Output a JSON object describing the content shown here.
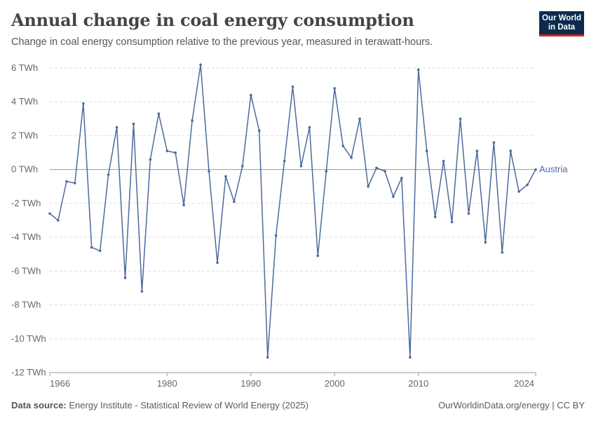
{
  "header": {
    "title": "Annual change in coal energy consumption",
    "subtitle": "Change in coal energy consumption relative to the previous year, measured in terawatt-hours."
  },
  "logo": {
    "line1": "Our World",
    "line2": "in Data"
  },
  "footer": {
    "source_label": "Data source:",
    "source_text": "Energy Institute - Statistical Review of World Energy (2025)",
    "credit": "OurWorldinData.org/energy | CC BY"
  },
  "colors": {
    "series": "#4c6a9c",
    "grid": "#dddddd",
    "zero_line": "#999999",
    "logo_bg": "#0b2a4e",
    "logo_accent": "#ce261e"
  },
  "chart_data": {
    "type": "line",
    "title": "Annual change in coal energy consumption",
    "subtitle": "Change in coal energy consumption relative to the previous year, measured in terawatt-hours.",
    "xlabel": "",
    "ylabel": "",
    "unit": "TWh",
    "xlim": [
      1966,
      2024
    ],
    "ylim": [
      -12,
      6
    ],
    "x_ticks": [
      1966,
      1980,
      1990,
      2000,
      2010,
      2024
    ],
    "y_ticks": [
      {
        "value": 6,
        "label": "6 TWh"
      },
      {
        "value": 4,
        "label": "4 TWh"
      },
      {
        "value": 2,
        "label": "2 TWh"
      },
      {
        "value": 0,
        "label": "0 TWh"
      },
      {
        "value": -2,
        "label": "-2 TWh"
      },
      {
        "value": -4,
        "label": "-4 TWh"
      },
      {
        "value": -6,
        "label": "-6 TWh"
      },
      {
        "value": -8,
        "label": "-8 TWh"
      },
      {
        "value": -10,
        "label": "-10 TWh"
      },
      {
        "value": -12,
        "label": "-12 TWh"
      }
    ],
    "grid": true,
    "legend": "end-of-line label",
    "x": [
      1966,
      1967,
      1968,
      1969,
      1970,
      1971,
      1972,
      1973,
      1974,
      1975,
      1976,
      1977,
      1978,
      1979,
      1980,
      1981,
      1982,
      1983,
      1984,
      1985,
      1986,
      1987,
      1988,
      1989,
      1990,
      1991,
      1992,
      1993,
      1994,
      1995,
      1996,
      1997,
      1998,
      1999,
      2000,
      2001,
      2002,
      2003,
      2004,
      2005,
      2006,
      2007,
      2008,
      2009,
      2010,
      2011,
      2012,
      2013,
      2014,
      2015,
      2016,
      2017,
      2018,
      2019,
      2020,
      2021,
      2022,
      2023,
      2024
    ],
    "series": [
      {
        "name": "Austria",
        "values": [
          -2.6,
          -3.0,
          -0.7,
          -0.8,
          3.9,
          -4.6,
          -4.8,
          -0.3,
          2.5,
          -6.4,
          2.7,
          -7.2,
          0.6,
          3.3,
          1.1,
          1.0,
          -2.1,
          2.9,
          6.2,
          -0.1,
          -5.5,
          -0.4,
          -1.9,
          0.2,
          4.4,
          2.3,
          -11.1,
          -3.9,
          0.5,
          4.9,
          0.2,
          2.5,
          -5.1,
          -0.1,
          4.8,
          1.4,
          0.7,
          3.0,
          -1.0,
          0.1,
          -0.1,
          -1.6,
          -0.5,
          -11.1,
          5.9,
          1.1,
          -2.8,
          0.5,
          -3.1,
          3.0,
          -2.6,
          1.1,
          -4.3,
          1.6,
          -4.9,
          1.1,
          -1.3,
          -0.9,
          0.0
        ]
      }
    ]
  }
}
